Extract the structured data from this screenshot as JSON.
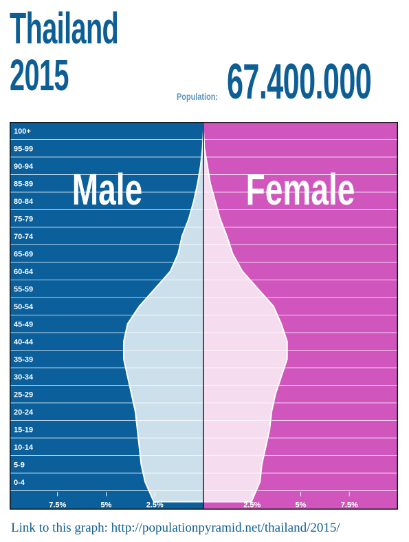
{
  "header": {
    "country": "Thailand",
    "year": "2015",
    "population_label": "Population:",
    "population_value": "67.400.000"
  },
  "footer": {
    "link_text": "Link to this graph: http://populationpyramid.net/thailand/2015/"
  },
  "colors": {
    "male_background": "#0b5f9b",
    "female_background": "#d056bd",
    "male_area": "#cce0ec",
    "female_area": "#f5dcee",
    "title": "#0e5e96"
  },
  "chart_data": {
    "type": "area",
    "side_labels": {
      "male": "Male",
      "female": "Female"
    },
    "age_groups": [
      "0-4",
      "5-9",
      "10-14",
      "15-19",
      "20-24",
      "25-29",
      "30-34",
      "35-39",
      "40-44",
      "45-49",
      "50-54",
      "55-59",
      "60-64",
      "65-69",
      "70-74",
      "75-79",
      "80-84",
      "85-89",
      "90-94",
      "95-99",
      "100+"
    ],
    "series": [
      {
        "name": "Male",
        "values": [
          3.0,
          3.2,
          3.3,
          3.4,
          3.5,
          3.7,
          3.9,
          4.1,
          4.1,
          3.9,
          3.3,
          2.5,
          1.7,
          1.3,
          1.1,
          0.75,
          0.5,
          0.3,
          0.15,
          0.05,
          0.0
        ]
      },
      {
        "name": "Female",
        "values": [
          2.9,
          3.0,
          3.2,
          3.4,
          3.5,
          3.7,
          4.0,
          4.3,
          4.3,
          4.0,
          3.6,
          2.8,
          2.0,
          1.5,
          1.2,
          0.85,
          0.6,
          0.35,
          0.2,
          0.05,
          0.0
        ]
      }
    ],
    "x_ticks": [
      "7.5%",
      "5%",
      "2.5%",
      "2.5%",
      "5%",
      "7.5%"
    ],
    "x_tick_values": [
      -7.5,
      -5,
      -2.5,
      2.5,
      5,
      7.5
    ],
    "xlim": [
      -10,
      10
    ]
  }
}
